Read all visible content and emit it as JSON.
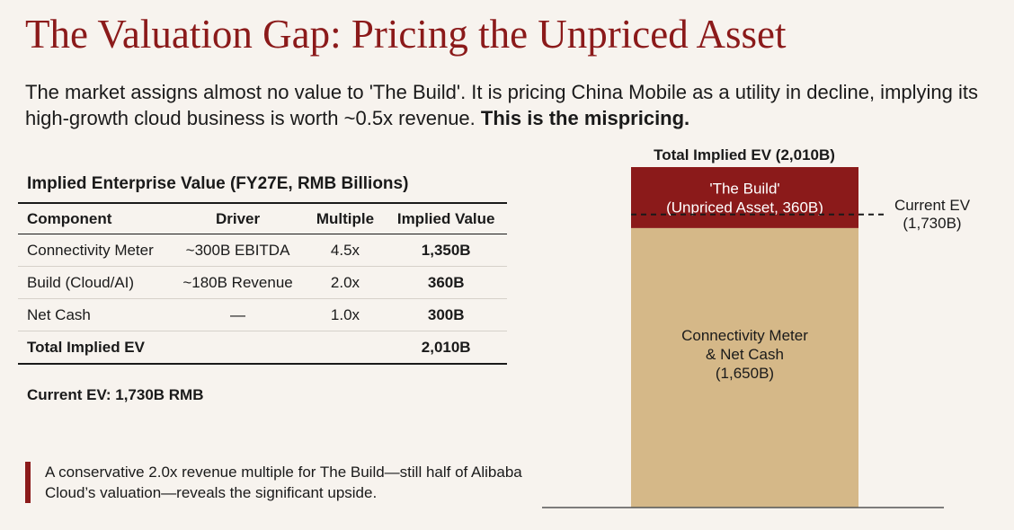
{
  "title": "The Valuation Gap: Pricing the Unpriced Asset",
  "subtitle": {
    "text": "The market assigns almost no value to 'The Build'. It is pricing China Mobile as a utility in decline, implying its high-growth cloud business is worth ~0.5x revenue.",
    "emphasis": "This is the mispricing."
  },
  "table": {
    "title": "Implied Enterprise Value (FY27E, RMB Billions)",
    "columns": [
      "Component",
      "Driver",
      "Multiple",
      "Implied Value"
    ],
    "rows": [
      {
        "component": "Connectivity Meter",
        "driver": "~300B EBITDA",
        "multiple": "4.5x",
        "value": "1,350B"
      },
      {
        "component": "Build (Cloud/AI)",
        "driver": "~180B Revenue",
        "multiple": "2.0x",
        "value": "360B"
      },
      {
        "component": "Net Cash",
        "driver": "—",
        "multiple": "1.0x",
        "value": "300B"
      }
    ],
    "total": {
      "label": "Total Implied EV",
      "value": "2,010B"
    }
  },
  "current_ev_text": "Current EV: 1,730B RMB",
  "callout": "A conservative 2.0x revenue multiple for The Build—still half of Alibaba Cloud’s valuation—reveals the significant upside.",
  "colors": {
    "accent": "#8b1a1a",
    "tan": "#d5b888",
    "background": "#f7f3ee"
  },
  "chart_data": {
    "type": "bar",
    "stacked": true,
    "title": "Total Implied EV (2,010B)",
    "segments": [
      {
        "name": "Connectivity Meter & Net Cash",
        "label_lines": [
          "Connectivity Meter",
          "& Net Cash",
          "(1,650B)"
        ],
        "value": 1650,
        "color": "#d5b888"
      },
      {
        "name": "'The Build'",
        "label_lines": [
          "'The Build'",
          "(Unpriced Asset, 360B)"
        ],
        "value": 360,
        "color": "#8b1a1a"
      }
    ],
    "reference_line": {
      "label_lines": [
        "Current EV",
        "(1,730B)"
      ],
      "value": 1730
    },
    "total": 2010
  }
}
